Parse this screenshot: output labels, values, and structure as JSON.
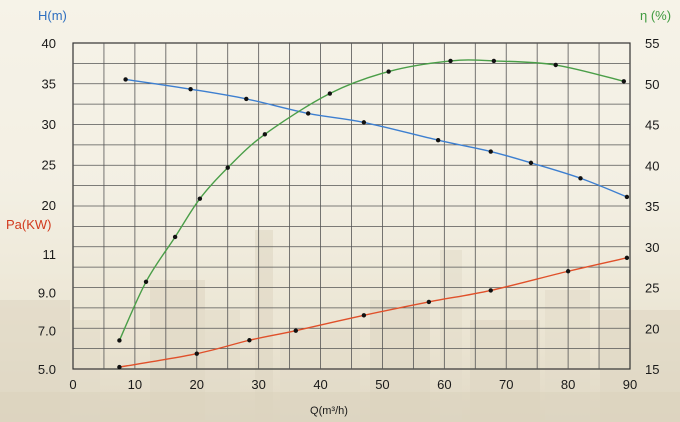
{
  "chart_data": {
    "type": "line",
    "x_axis": {
      "label": "Q(m³/h)",
      "range": [
        0,
        90
      ],
      "ticks": [
        0,
        10,
        20,
        30,
        40,
        50,
        60,
        70,
        80,
        90
      ],
      "tick_labels": [
        "0",
        "10",
        "20",
        "30",
        "40",
        "50",
        "60",
        "70",
        "80",
        "90"
      ]
    },
    "y_axes": {
      "head": {
        "label": "H(m)",
        "color": "#2f6fc0",
        "range": [
          20,
          40
        ],
        "ticks": [
          20,
          25,
          30,
          35,
          40
        ],
        "tick_labels": [
          "20",
          "25",
          "30",
          "35",
          "40"
        ]
      },
      "power": {
        "label": "Pa(KW)",
        "color": "#d23a1e",
        "range": [
          5.0,
          11.0
        ],
        "ticks": [
          5.0,
          7.0,
          9.0,
          11.0
        ],
        "tick_labels": [
          "5.0",
          "7.0",
          "9.0",
          "11"
        ]
      },
      "efficiency": {
        "label": "η (%)",
        "color": "#3f9a3f",
        "range": [
          15,
          55
        ],
        "ticks": [
          15,
          20,
          25,
          30,
          35,
          40,
          45,
          50,
          55
        ],
        "tick_labels": [
          "15",
          "20",
          "25",
          "30",
          "35",
          "40",
          "45",
          "50",
          "55"
        ]
      }
    },
    "grid": true,
    "series": [
      {
        "key": "head",
        "axis": "head",
        "color": "#3d7fd0",
        "points": [
          [
            8.5,
            35.5
          ],
          [
            19,
            34.3
          ],
          [
            28,
            33.1
          ],
          [
            38,
            31.3
          ],
          [
            47,
            30.2
          ],
          [
            59,
            28.0
          ],
          [
            67.5,
            26.6
          ],
          [
            74,
            25.2
          ],
          [
            82,
            23.3
          ],
          [
            89.5,
            21.0
          ]
        ]
      },
      {
        "key": "efficiency",
        "axis": "efficiency",
        "color": "#4a9e48",
        "points": [
          [
            7.5,
            18.5
          ],
          [
            11.8,
            25.7
          ],
          [
            16.5,
            31.2
          ],
          [
            20.5,
            35.9
          ],
          [
            25,
            39.7
          ],
          [
            31,
            43.8
          ],
          [
            41.5,
            48.8
          ],
          [
            51,
            51.5
          ],
          [
            61,
            52.8
          ],
          [
            68,
            52.8
          ],
          [
            78,
            52.3
          ],
          [
            89,
            50.3
          ]
        ]
      },
      {
        "key": "power",
        "axis": "power",
        "color": "#e0502a",
        "points": [
          [
            7.5,
            5.1
          ],
          [
            20,
            5.8
          ],
          [
            28.5,
            6.5
          ],
          [
            36,
            7.0
          ],
          [
            47,
            7.8
          ],
          [
            57.5,
            8.5
          ],
          [
            67.5,
            9.1
          ],
          [
            80,
            10.1
          ],
          [
            89.5,
            10.8
          ]
        ]
      }
    ]
  }
}
